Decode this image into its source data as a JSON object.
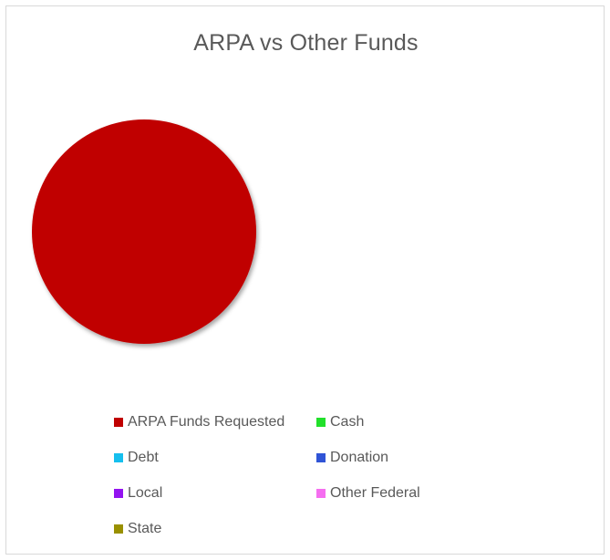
{
  "chart_data": {
    "type": "pie",
    "title": "ARPA vs Other Funds",
    "categories": [
      "ARPA Funds Requested",
      "Cash",
      "Debt",
      "Donation",
      "Local",
      "Other Federal",
      "State"
    ],
    "values": [
      100,
      0,
      0,
      0,
      0,
      0,
      0
    ],
    "colors": [
      "#c00000",
      "#22e02b",
      "#16bfee",
      "#3054d6",
      "#9313f0",
      "#f56ef0",
      "#999000"
    ],
    "legend_position": "bottom"
  }
}
